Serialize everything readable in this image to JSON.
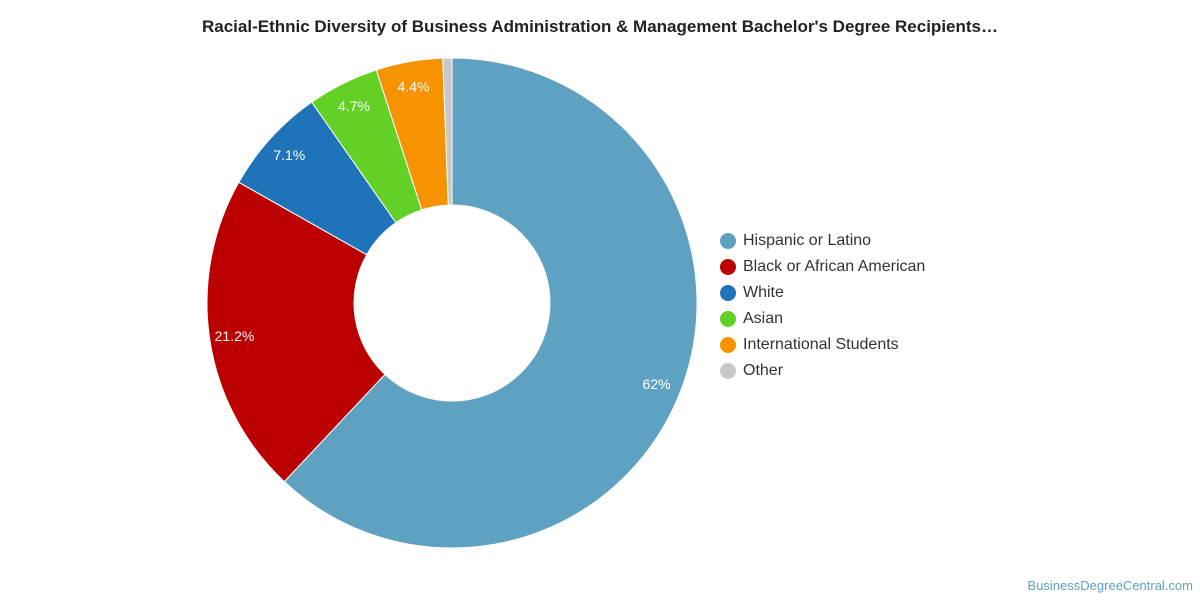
{
  "title": "Racial-Ethnic Diversity of Business Administration & Management Bachelor's Degree Recipients…",
  "footer": "BusinessDegreeCentral.com",
  "chart_data": {
    "type": "pie",
    "variant": "donut",
    "title": "Racial-Ethnic Diversity of Business Administration & Management Bachelor's Degree Recipients…",
    "legend_position": "right",
    "slices": [
      {
        "label": "Hispanic or Latino",
        "value": 62.0,
        "display": "62%",
        "color": "#5fa1c0"
      },
      {
        "label": "Black or African American",
        "value": 21.2,
        "display": "21.2%",
        "color": "#bb0000"
      },
      {
        "label": "White",
        "value": 7.1,
        "display": "7.1%",
        "color": "#1f73b8"
      },
      {
        "label": "Asian",
        "value": 4.7,
        "display": "4.7%",
        "color": "#63d026"
      },
      {
        "label": "International Students",
        "value": 4.4,
        "display": "4.4%",
        "color": "#f79200"
      },
      {
        "label": "Other",
        "value": 0.6,
        "display": "",
        "color": "#c8c8c8"
      }
    ]
  }
}
